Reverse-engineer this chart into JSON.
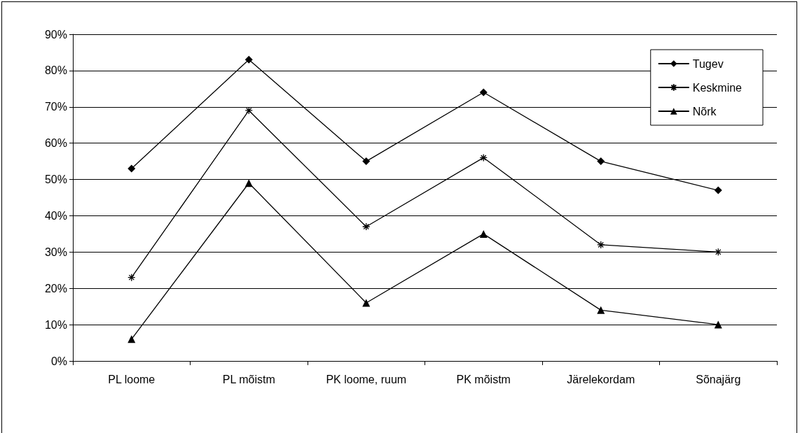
{
  "chart_data": {
    "type": "line",
    "categories": [
      "PL loome",
      "PL mõistm",
      "PK loome, ruum",
      "PK mõistm",
      "Järelekordam",
      "Sõnajärg"
    ],
    "series": [
      {
        "name": "Tugev",
        "color": "#000000",
        "marker": "diamond",
        "values": [
          0.53,
          0.83,
          0.55,
          0.74,
          0.55,
          0.47
        ]
      },
      {
        "name": "Keskmine",
        "color": "#000000",
        "marker": "cross",
        "values": [
          0.23,
          0.69,
          0.37,
          0.56,
          0.32,
          0.3
        ]
      },
      {
        "name": "Nõrk",
        "color": "#000000",
        "marker": "triangle",
        "values": [
          0.06,
          0.49,
          0.16,
          0.35,
          0.14,
          0.1
        ]
      }
    ],
    "ylim": [
      0,
      0.9
    ],
    "yticks": [
      {
        "value": 0,
        "label": "0%"
      },
      {
        "value": 0.1,
        "label": "10%"
      },
      {
        "value": 0.2,
        "label": "20%"
      },
      {
        "value": 0.3,
        "label": "30%"
      },
      {
        "value": 0.4,
        "label": "40%"
      },
      {
        "value": 0.5,
        "label": "50%"
      },
      {
        "value": 0.6,
        "label": "60%"
      },
      {
        "value": 0.7,
        "label": "70%"
      },
      {
        "value": 0.8,
        "label": "80%"
      },
      {
        "value": 0.9,
        "label": "90%"
      }
    ],
    "grid": "y",
    "legend": "top right",
    "line_style": "solid"
  }
}
